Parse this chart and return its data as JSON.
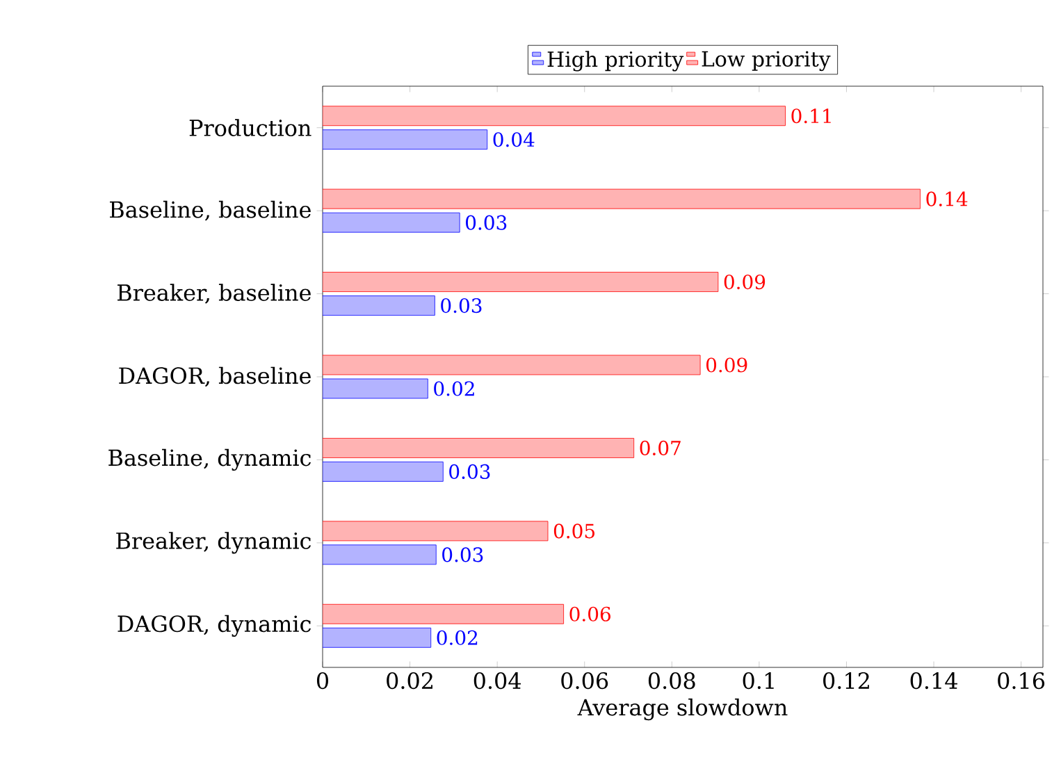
{
  "chart_data": {
    "type": "bar",
    "orientation": "horizontal",
    "xlabel": "Average slowdown",
    "categories": [
      "Production",
      "Baseline, baseline",
      "Breaker, baseline",
      "DAGOR, baseline",
      "Baseline, dynamic",
      "Breaker, dynamic",
      "DAGOR, dynamic"
    ],
    "series": [
      {
        "name": "High priority",
        "color": "#b3b3ff",
        "values": [
          0.0377,
          0.0314,
          0.0257,
          0.0241,
          0.0276,
          0.026,
          0.0248
        ],
        "value_labels": [
          "0.04",
          "0.03",
          "0.03",
          "0.02",
          "0.03",
          "0.03",
          "0.02"
        ]
      },
      {
        "name": "Low priority",
        "color": "#ffb3b3",
        "values": [
          0.106,
          0.1369,
          0.0906,
          0.0865,
          0.0713,
          0.0516,
          0.0552
        ],
        "value_labels": [
          "0.11",
          "0.14",
          "0.09",
          "0.09",
          "0.07",
          "0.05",
          "0.06"
        ]
      }
    ],
    "xlim": [
      0,
      0.165
    ],
    "xticks": [
      0,
      0.02,
      0.04,
      0.06,
      0.08,
      0.1,
      0.12,
      0.14,
      0.16
    ],
    "legend": "top",
    "grid": false
  }
}
